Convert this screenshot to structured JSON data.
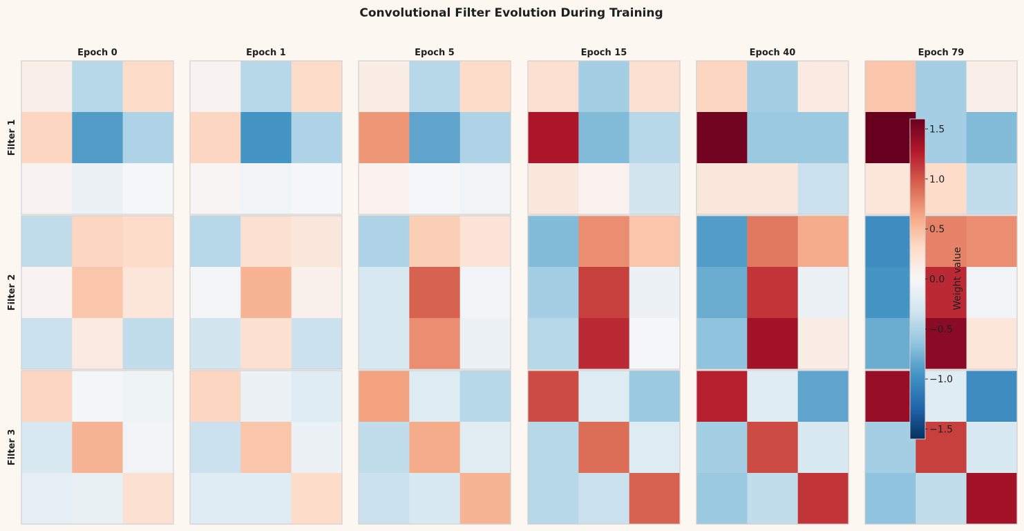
{
  "chart_data": {
    "type": "heatmap",
    "title": "Convolutional Filter Evolution During Training",
    "columns": [
      "Epoch 0",
      "Epoch 1",
      "Epoch 5",
      "Epoch 15",
      "Epoch 40",
      "Epoch 79"
    ],
    "rows": [
      "Filter 1",
      "Filter 2",
      "Filter 3"
    ],
    "colormap": "RdBu_r",
    "vmin": -1.6,
    "vmax": 1.6,
    "colorbar": {
      "label": "Weight value",
      "ticks": [
        1.5,
        1.0,
        0.5,
        0.0,
        -0.5,
        -1.0,
        -1.5
      ],
      "tick_labels": [
        "1.5",
        "1.0",
        "0.5",
        "0.0",
        "−0.5",
        "−1.0",
        "−1.5"
      ]
    },
    "values": {
      "Filter 1": [
        [
          [
            0.1,
            -0.45,
            0.3
          ],
          [
            0.35,
            -0.9,
            -0.5
          ],
          [
            0.05,
            -0.1,
            -0.02
          ]
        ],
        [
          [
            0.05,
            -0.45,
            0.3
          ],
          [
            0.35,
            -0.95,
            -0.5
          ],
          [
            0.03,
            -0.05,
            -0.02
          ]
        ],
        [
          [
            0.12,
            -0.45,
            0.3
          ],
          [
            0.7,
            -0.85,
            -0.5
          ],
          [
            0.07,
            -0.02,
            -0.05
          ]
        ],
        [
          [
            0.25,
            -0.55,
            0.25
          ],
          [
            1.3,
            -0.7,
            -0.45
          ],
          [
            0.18,
            0.07,
            -0.3
          ]
        ],
        [
          [
            0.35,
            -0.55,
            0.15
          ],
          [
            1.55,
            -0.6,
            -0.6
          ],
          [
            0.18,
            0.18,
            -0.35
          ]
        ],
        [
          [
            0.45,
            -0.55,
            0.1
          ],
          [
            1.7,
            -0.55,
            -0.7
          ],
          [
            0.2,
            0.3,
            -0.4
          ]
        ]
      ],
      "Filter 2": [
        [
          [
            -0.4,
            0.35,
            0.3
          ],
          [
            0.05,
            0.45,
            0.2
          ],
          [
            -0.35,
            0.15,
            -0.4
          ]
        ],
        [
          [
            -0.45,
            0.25,
            0.18
          ],
          [
            -0.03,
            0.55,
            0.08
          ],
          [
            -0.3,
            0.25,
            -0.35
          ]
        ],
        [
          [
            -0.5,
            0.4,
            0.22
          ],
          [
            -0.25,
            0.95,
            -0.05
          ],
          [
            -0.25,
            0.75,
            -0.1
          ]
        ],
        [
          [
            -0.7,
            0.75,
            0.45
          ],
          [
            -0.55,
            1.1,
            -0.1
          ],
          [
            -0.45,
            1.2,
            -0.02
          ]
        ],
        [
          [
            -0.9,
            0.85,
            0.6
          ],
          [
            -0.8,
            1.15,
            -0.1
          ],
          [
            -0.65,
            1.35,
            0.12
          ]
        ],
        [
          [
            -1.0,
            0.8,
            0.75
          ],
          [
            -0.95,
            1.2,
            -0.05
          ],
          [
            -0.8,
            1.45,
            0.2
          ]
        ]
      ],
      "Filter 3": [
        [
          [
            0.35,
            -0.03,
            -0.08
          ],
          [
            -0.25,
            0.55,
            -0.05
          ],
          [
            -0.15,
            -0.12,
            0.25
          ]
        ],
        [
          [
            0.35,
            -0.1,
            -0.2
          ],
          [
            -0.35,
            0.45,
            -0.1
          ],
          [
            -0.2,
            -0.2,
            0.3
          ]
        ],
        [
          [
            0.65,
            -0.22,
            -0.45
          ],
          [
            -0.4,
            0.6,
            -0.18
          ],
          [
            -0.35,
            -0.25,
            0.55
          ]
        ],
        [
          [
            1.05,
            -0.22,
            -0.6
          ],
          [
            -0.45,
            0.9,
            -0.22
          ],
          [
            -0.45,
            -0.35,
            0.95
          ]
        ],
        [
          [
            1.25,
            -0.2,
            -0.85
          ],
          [
            -0.55,
            1.05,
            -0.25
          ],
          [
            -0.6,
            -0.4,
            1.15
          ]
        ],
        [
          [
            1.4,
            -0.2,
            -1.0
          ],
          [
            -0.55,
            1.1,
            -0.25
          ],
          [
            -0.65,
            -0.4,
            1.35
          ]
        ]
      ]
    }
  }
}
